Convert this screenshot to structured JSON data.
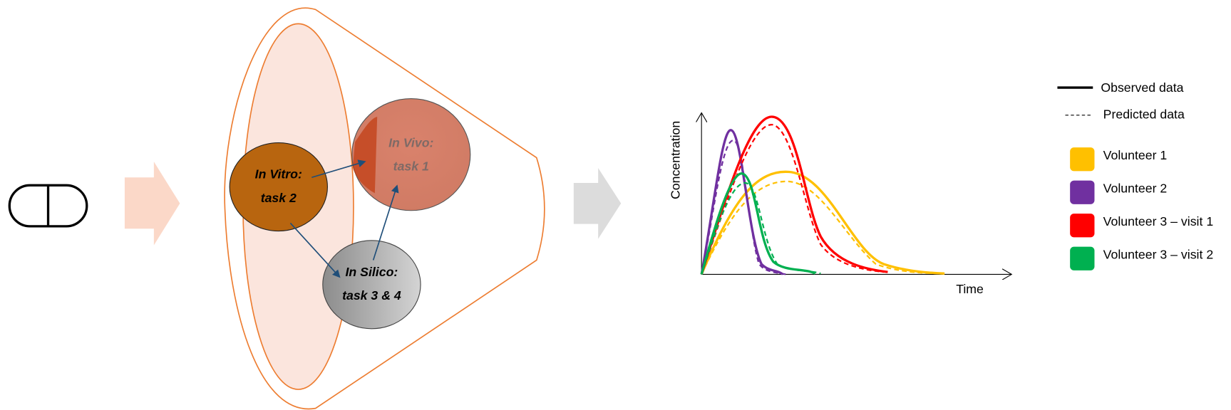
{
  "nodes": [
    {
      "label": "In Vitro:",
      "sublabel": "task 2"
    },
    {
      "label": "In Vivo:",
      "sublabel": "task 1"
    },
    {
      "label": "In Silico:",
      "sublabel": "task 3 & 4"
    }
  ],
  "plot": {
    "y_label": "Concentration",
    "x_label": "Time"
  },
  "legend": {
    "line_styles": [
      {
        "label": "Observed data"
      },
      {
        "label": "Predicted data"
      }
    ],
    "volunteers": [
      {
        "label": "Volunteer 1",
        "color": "#ffc000"
      },
      {
        "label": "Volunteer 2",
        "color": "#7030a0"
      },
      {
        "label": "Volunteer 3 – visit 1",
        "color": "#ff0000"
      },
      {
        "label": "Volunteer 3 – visit 2",
        "color": "#00b050"
      }
    ]
  }
}
